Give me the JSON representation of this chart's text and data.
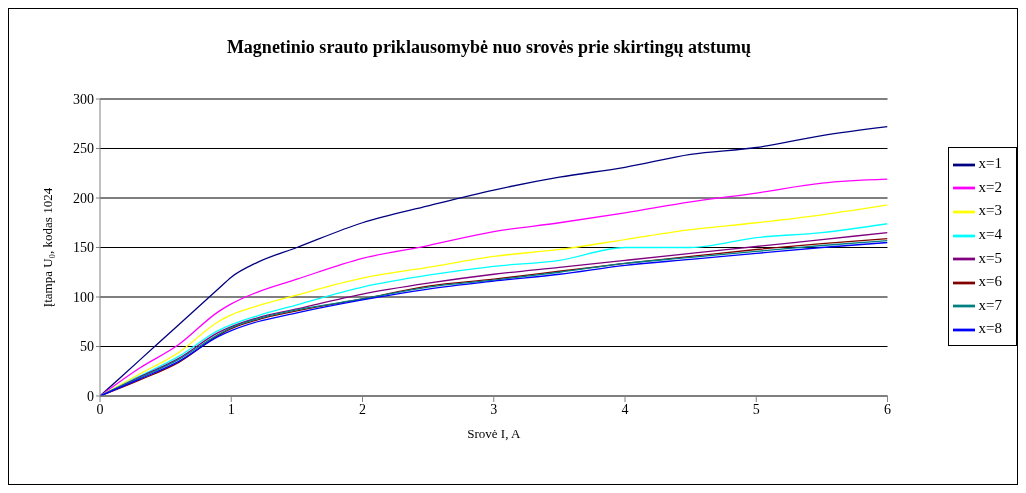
{
  "chart_data": {
    "type": "line",
    "title": "Magnetinio srauto priklausomybė nuo srovės prie skirtingų atstumų",
    "xlabel": "Srovė I, A",
    "ylabel": "Įtampa U₀, kodas 1024",
    "x": [
      0,
      0.3,
      0.6,
      0.9,
      1,
      1.2,
      1.5,
      2,
      2.5,
      3,
      3.5,
      4,
      4.5,
      5,
      5.5,
      6
    ],
    "series": [
      {
        "name": "x=1",
        "color": "#000080",
        "values": [
          0,
          36,
          72,
          108,
          120,
          135,
          150,
          175,
          192,
          208,
          221,
          231,
          244,
          251,
          263,
          272
        ]
      },
      {
        "name": "x=2",
        "color": "#ff00ff",
        "values": [
          0,
          28,
          52,
          85,
          93,
          105,
          118,
          139,
          152,
          166,
          175,
          185,
          196,
          205,
          215,
          219
        ]
      },
      {
        "name": "x=3",
        "color": "#ffff00",
        "values": [
          0,
          22,
          44,
          75,
          82,
          91,
          102,
          119,
          130,
          141,
          148,
          158,
          168,
          175,
          183,
          193
        ]
      },
      {
        "name": "x=4",
        "color": "#00ffff",
        "values": [
          0,
          20,
          40,
          66,
          72,
          81,
          92,
          110,
          122,
          131,
          137,
          150,
          150,
          160,
          165,
          174
        ]
      },
      {
        "name": "x=5",
        "color": "#800080",
        "values": [
          0,
          19,
          38,
          64,
          70,
          79,
          88,
          103,
          114,
          123,
          130,
          137,
          144,
          151,
          158,
          165
        ]
      },
      {
        "name": "x=6",
        "color": "#800000",
        "values": [
          0,
          16,
          34,
          61,
          68,
          77,
          86,
          98,
          111,
          118,
          126,
          134,
          141,
          148,
          154,
          159
        ]
      },
      {
        "name": "x=7",
        "color": "#008080",
        "values": [
          0,
          18,
          37,
          62,
          69,
          78,
          87,
          98,
          110,
          117,
          125,
          134,
          140,
          146,
          152,
          157
        ]
      },
      {
        "name": "x=8",
        "color": "#0000ff",
        "values": [
          0,
          17,
          35,
          60,
          66,
          75,
          84,
          97,
          108,
          116,
          123,
          132,
          138,
          144,
          150,
          155
        ]
      }
    ],
    "xlim": [
      0,
      6
    ],
    "xticks": [
      0,
      1,
      2,
      3,
      4,
      5,
      6
    ],
    "ylim": [
      0,
      300
    ],
    "yticks": [
      0,
      50,
      100,
      150,
      200,
      250,
      300
    ],
    "grid": "y",
    "legend": "right",
    "marker": "none",
    "line_style": "solid"
  }
}
